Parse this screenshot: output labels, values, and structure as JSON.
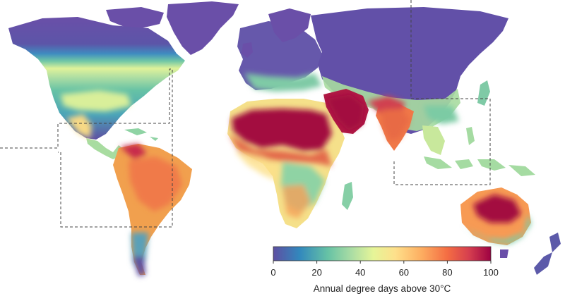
{
  "map": {
    "legend": {
      "title": "Annual degree days above 30°C",
      "ticks": [
        "0",
        "20",
        "40",
        "60",
        "80",
        "100"
      ],
      "range": [
        0,
        100
      ],
      "colormap": "spectral-reversed",
      "stops": [
        "#5e4fa2",
        "#3288bd",
        "#66c2a5",
        "#abdda4",
        "#e6f598",
        "#fee08b",
        "#fdae61",
        "#f46d43",
        "#d53e4f",
        "#9e0142"
      ]
    },
    "colors": {
      "ocean": "#ffffff",
      "frame_line": "#444444"
    }
  }
}
